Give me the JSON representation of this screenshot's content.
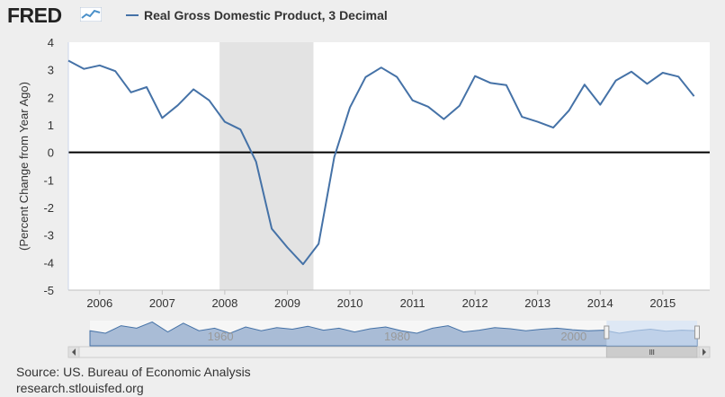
{
  "header": {
    "logo_text": "FRED",
    "logo_icon": "fred-mini-chart-icon",
    "legend_label": "Real Gross Domestic Product, 3 Decimal",
    "legend_color": "#4572a7"
  },
  "footer": {
    "source": "Source: US. Bureau of Economic Analysis",
    "url": "research.stlouisfed.org"
  },
  "chart_data": {
    "type": "line",
    "title": "",
    "xlabel": "",
    "ylabel": "(Percent Change from Year Ago)",
    "ylim": [
      -5,
      4
    ],
    "yticks": [
      4,
      3,
      2,
      1,
      0,
      -1,
      -2,
      -3,
      -4,
      -5
    ],
    "xlim": [
      2005.5,
      2015.75
    ],
    "xticks": [
      "2006",
      "2007",
      "2008",
      "2009",
      "2010",
      "2011",
      "2012",
      "2013",
      "2014",
      "2015"
    ],
    "zero_line": true,
    "grid": false,
    "legend": "top-left",
    "series": [
      {
        "name": "Real Gross Domestic Product, 3 Decimal",
        "color": "#4572a7",
        "x": [
          2005.5,
          2005.75,
          2006.0,
          2006.25,
          2006.5,
          2006.75,
          2007.0,
          2007.25,
          2007.5,
          2007.75,
          2008.0,
          2008.25,
          2008.5,
          2008.75,
          2009.0,
          2009.25,
          2009.5,
          2009.75,
          2010.0,
          2010.25,
          2010.5,
          2010.75,
          2011.0,
          2011.25,
          2011.5,
          2011.75,
          2012.0,
          2012.25,
          2012.5,
          2012.75,
          2013.0,
          2013.25,
          2013.5,
          2013.75,
          2014.0,
          2014.25,
          2014.5,
          2014.75,
          2015.0,
          2015.25,
          2015.5
        ],
        "values": [
          3.33,
          3.03,
          3.16,
          2.95,
          2.18,
          2.37,
          1.25,
          1.71,
          2.29,
          1.89,
          1.11,
          0.83,
          -0.34,
          -2.77,
          -3.45,
          -4.06,
          -3.32,
          -0.17,
          1.63,
          2.73,
          3.08,
          2.74,
          1.89,
          1.66,
          1.21,
          1.69,
          2.77,
          2.52,
          2.44,
          1.29,
          1.11,
          0.9,
          1.52,
          2.46,
          1.73,
          2.61,
          2.93,
          2.49,
          2.89,
          2.75,
          2.04
        ]
      }
    ],
    "recessions": [
      [
        2007.917,
        2009.417
      ]
    ],
    "recession_color": "#e3e3e3",
    "navigator": {
      "labels": [
        "1960",
        "1980",
        "2000"
      ],
      "range": [
        1947,
        2015.75
      ],
      "selected": [
        2005.5,
        2015.75
      ],
      "values": [
        0.6,
        0.5,
        0.8,
        0.7,
        0.95,
        0.55,
        0.9,
        0.6,
        0.7,
        0.5,
        0.75,
        0.6,
        0.72,
        0.66,
        0.78,
        0.62,
        0.7,
        0.55,
        0.68,
        0.75,
        0.6,
        0.5,
        0.7,
        0.8,
        0.55,
        0.62,
        0.72,
        0.68,
        0.6,
        0.66,
        0.7,
        0.64,
        0.6,
        0.62,
        0.5,
        0.6,
        0.66,
        0.58,
        0.62,
        0.6
      ]
    }
  }
}
